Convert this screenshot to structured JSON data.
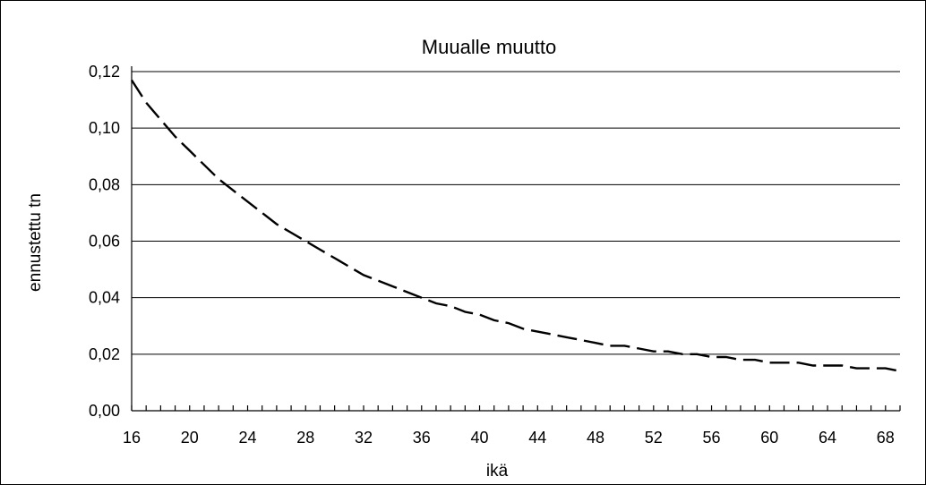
{
  "chart_data": {
    "type": "line",
    "title": "Muualle muutto",
    "xlabel": "ikä",
    "ylabel": "ennustettu tn",
    "xlim": [
      16,
      69
    ],
    "ylim": [
      0,
      0.12
    ],
    "x_ticks": [
      "16",
      "20",
      "24",
      "28",
      "32",
      "36",
      "40",
      "44",
      "48",
      "52",
      "56",
      "60",
      "64",
      "68"
    ],
    "x_tick_values": [
      16,
      20,
      24,
      28,
      32,
      36,
      40,
      44,
      48,
      52,
      56,
      60,
      64,
      68
    ],
    "y_ticks": [
      "0,00",
      "0,02",
      "0,04",
      "0,06",
      "0,08",
      "0,10",
      "0,12"
    ],
    "y_tick_values": [
      0,
      0.02,
      0.04,
      0.06,
      0.08,
      0.1,
      0.12
    ],
    "grid": true,
    "series": [
      {
        "x": [
          16,
          17,
          18,
          19,
          20,
          21,
          22,
          23,
          24,
          25,
          26,
          27,
          28,
          29,
          30,
          31,
          32,
          33,
          34,
          35,
          36,
          37,
          38,
          39,
          40,
          41,
          42,
          43,
          44,
          45,
          46,
          47,
          48,
          49,
          50,
          51,
          52,
          53,
          54,
          55,
          56,
          57,
          58,
          59,
          60,
          61,
          62,
          63,
          64,
          65,
          66,
          67,
          68,
          69
        ],
        "y": [
          0.117,
          0.109,
          0.103,
          0.097,
          0.092,
          0.087,
          0.082,
          0.078,
          0.074,
          0.07,
          0.066,
          0.063,
          0.06,
          0.057,
          0.054,
          0.051,
          0.048,
          0.046,
          0.044,
          0.042,
          0.04,
          0.038,
          0.037,
          0.035,
          0.034,
          0.032,
          0.031,
          0.029,
          0.028,
          0.027,
          0.026,
          0.025,
          0.024,
          0.023,
          0.023,
          0.022,
          0.021,
          0.021,
          0.02,
          0.02,
          0.019,
          0.019,
          0.018,
          0.018,
          0.017,
          0.017,
          0.017,
          0.016,
          0.016,
          0.016,
          0.015,
          0.015,
          0.015,
          0.014
        ]
      }
    ]
  }
}
